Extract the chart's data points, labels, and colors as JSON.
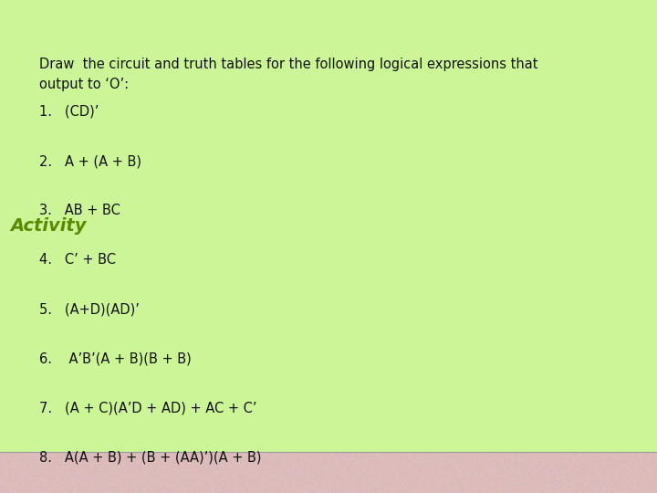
{
  "title": "Activity",
  "title_bg_color": "#ccf598",
  "title_text_color": "#5a8a00",
  "body_bg_color": "#ddbcbc",
  "title_fontsize": 14,
  "instruction": "Draw  the circuit and truth tables for the following logical expressions that\noutput to ‘O’:",
  "instruction_fontsize": 10.5,
  "items": [
    "1.   (CD)’",
    "2.   A + (A + B)",
    "3.   AB + BC",
    "4.   C’ + BC",
    "5.   (A+D)(AD)’",
    "6.    A’B’(A + B)(B + B)",
    "7.   (A + C)(A’D + AD) + AC + C’",
    "8.   A(A + B) + (B + (AA)’)(A + B)"
  ],
  "item_fontsize": 10.5,
  "separator_color": "#999999",
  "figsize": [
    7.2,
    5.4
  ],
  "dpi": 100
}
